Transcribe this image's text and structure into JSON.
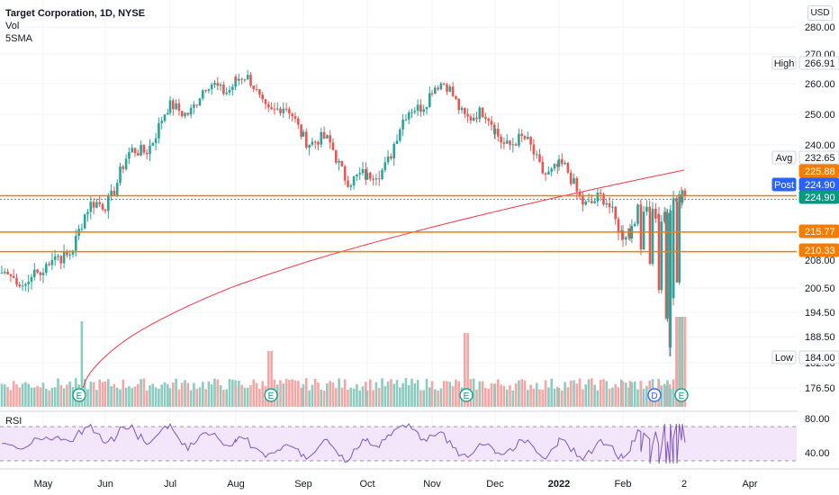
{
  "legend": {
    "title": "Target Corporation, 1D, NYSE",
    "vol": "Vol",
    "sma": "5SMA"
  },
  "currency_button": "USD",
  "rsi_label": "RSI",
  "price_axis": {
    "ticks": [
      "280.00",
      "270.00",
      "260.00",
      "250.00",
      "240.00",
      "208.00",
      "200.50",
      "194.50",
      "188.50",
      "182.50",
      "176.50"
    ],
    "tags": [
      {
        "label": "High",
        "value": "266.91",
        "bg": "#ffffff",
        "fg": "#131722",
        "border": "#d1d4dc"
      },
      {
        "label": "Avg",
        "value": "232.65",
        "bg": "#ffffff",
        "fg": "#131722",
        "border": "#d1d4dc"
      },
      {
        "label": "",
        "value": "225.88",
        "bg": "#f57c00",
        "fg": "#ffffff",
        "border": "#f57c00"
      },
      {
        "label": "Post",
        "value": "224.90",
        "bg": "#2962ff",
        "fg": "#ffffff",
        "border": "#2962ff"
      },
      {
        "label": "",
        "value": "224.90",
        "bg": "#089981",
        "fg": "#ffffff",
        "border": "#089981"
      },
      {
        "label": "",
        "value": "215.77",
        "bg": "#f57c00",
        "fg": "#ffffff",
        "border": "#f57c00"
      },
      {
        "label": "",
        "value": "210.33",
        "bg": "#f57c00",
        "fg": "#ffffff",
        "border": "#f57c00"
      },
      {
        "label": "Low",
        "value": "184.00",
        "bg": "#ffffff",
        "fg": "#131722",
        "border": "#d1d4dc"
      }
    ]
  },
  "rsi_axis": {
    "ticks": [
      "80.00",
      "40.00"
    ]
  },
  "time_axis": {
    "ticks": [
      "May",
      "Jun",
      "Jul",
      "Aug",
      "Sep",
      "Oct",
      "Nov",
      "Dec",
      "2022",
      "Feb",
      "2",
      "Apr"
    ]
  },
  "events": [
    "E",
    "E",
    "E",
    "D",
    "E"
  ],
  "chart_data": {
    "type": "candlestick",
    "symbol": "Target Corporation",
    "interval": "1D",
    "exchange": "NYSE",
    "close_path": [
      [
        "May",
        203
      ],
      [
        "Jun",
        226
      ],
      [
        "Jul",
        250
      ],
      [
        "Aug",
        262
      ],
      [
        "Sep",
        245
      ],
      [
        "Oct",
        228
      ],
      [
        "Nov",
        260
      ],
      [
        "Dec",
        245
      ],
      [
        "2022",
        232
      ],
      [
        "Feb",
        218
      ],
      [
        "2",
        224.9
      ]
    ],
    "price_levels": [
      225.88,
      215.77,
      210.33
    ],
    "high": 266.91,
    "low": 184.0,
    "avg": 232.65,
    "last": 224.9,
    "colors": {
      "up": "#26a69a",
      "down": "#ef5350",
      "sma": "#f23645",
      "levels": "#f57c00",
      "rsi": "#7e57c2"
    }
  }
}
